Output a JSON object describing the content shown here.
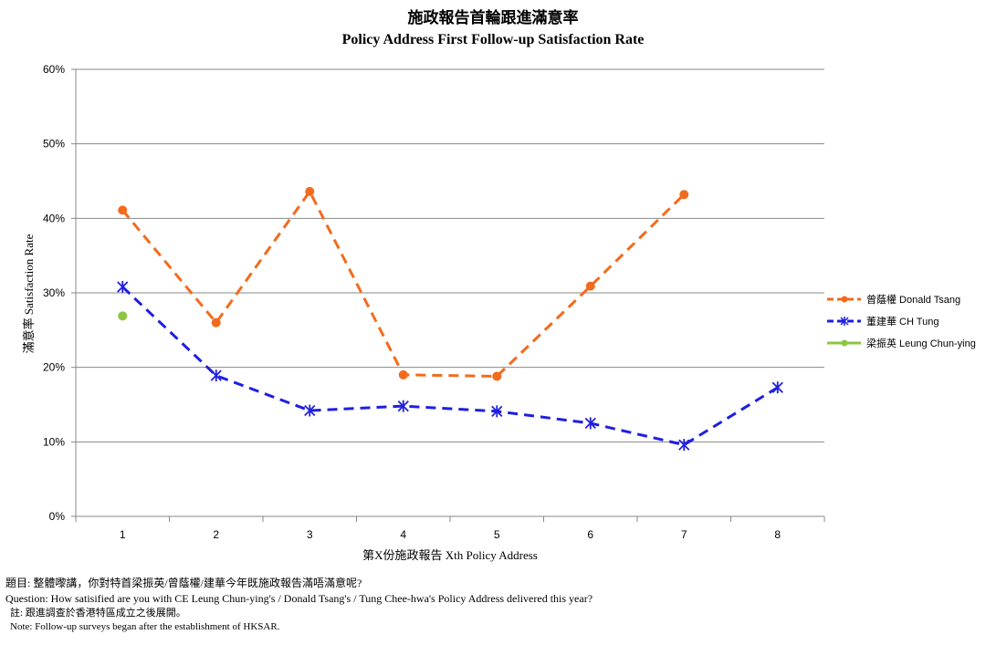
{
  "chart_data": {
    "type": "line",
    "title": "施政報告首輪跟進滿意率",
    "subtitle": "Policy Address First Follow-up Satisfaction Rate",
    "xlabel": "第X份施政報告 Xth Policy Address",
    "ylabel": "滿意率 Satisfaction Rate",
    "categories": [
      "1",
      "2",
      "3",
      "4",
      "5",
      "6",
      "7",
      "8"
    ],
    "yticks": [
      "0%",
      "10%",
      "20%",
      "30%",
      "40%",
      "50%",
      "60%"
    ],
    "ylim": [
      0,
      60
    ],
    "grid": true,
    "legend_position": "right",
    "series": [
      {
        "name": "曾蔭權 Donald Tsang",
        "color": "#f26b1d",
        "marker": "circle",
        "dash": "dashed",
        "values": [
          41.1,
          26.0,
          43.6,
          19.0,
          18.8,
          30.9,
          43.2,
          null
        ]
      },
      {
        "name": "董建華 CH Tung",
        "color": "#1f1fe0",
        "marker": "star",
        "dash": "dashed",
        "values": [
          30.8,
          18.9,
          14.2,
          14.8,
          14.1,
          12.5,
          9.6,
          17.3
        ]
      },
      {
        "name": "梁振英 Leung Chun-ying",
        "color": "#8cc63f",
        "marker": "circle",
        "dash": "solid",
        "values": [
          26.9,
          null,
          null,
          null,
          null,
          null,
          null,
          null
        ]
      }
    ]
  },
  "notes": {
    "question_zh": "題目: 整體嚟講，你對特首梁振英/曾蔭權/建華今年既施政報告滿唔滿意呢?",
    "question_en": "Question: How satisified are you with CE Leung Chun-ying's / Donald Tsang's / Tung Chee-hwa's Policy Address delivered this year?",
    "note_zh": "註: 跟進調查於香港特區成立之後展開。",
    "note_en": "Note: Follow-up surveys began after the establishment of HKSAR."
  }
}
